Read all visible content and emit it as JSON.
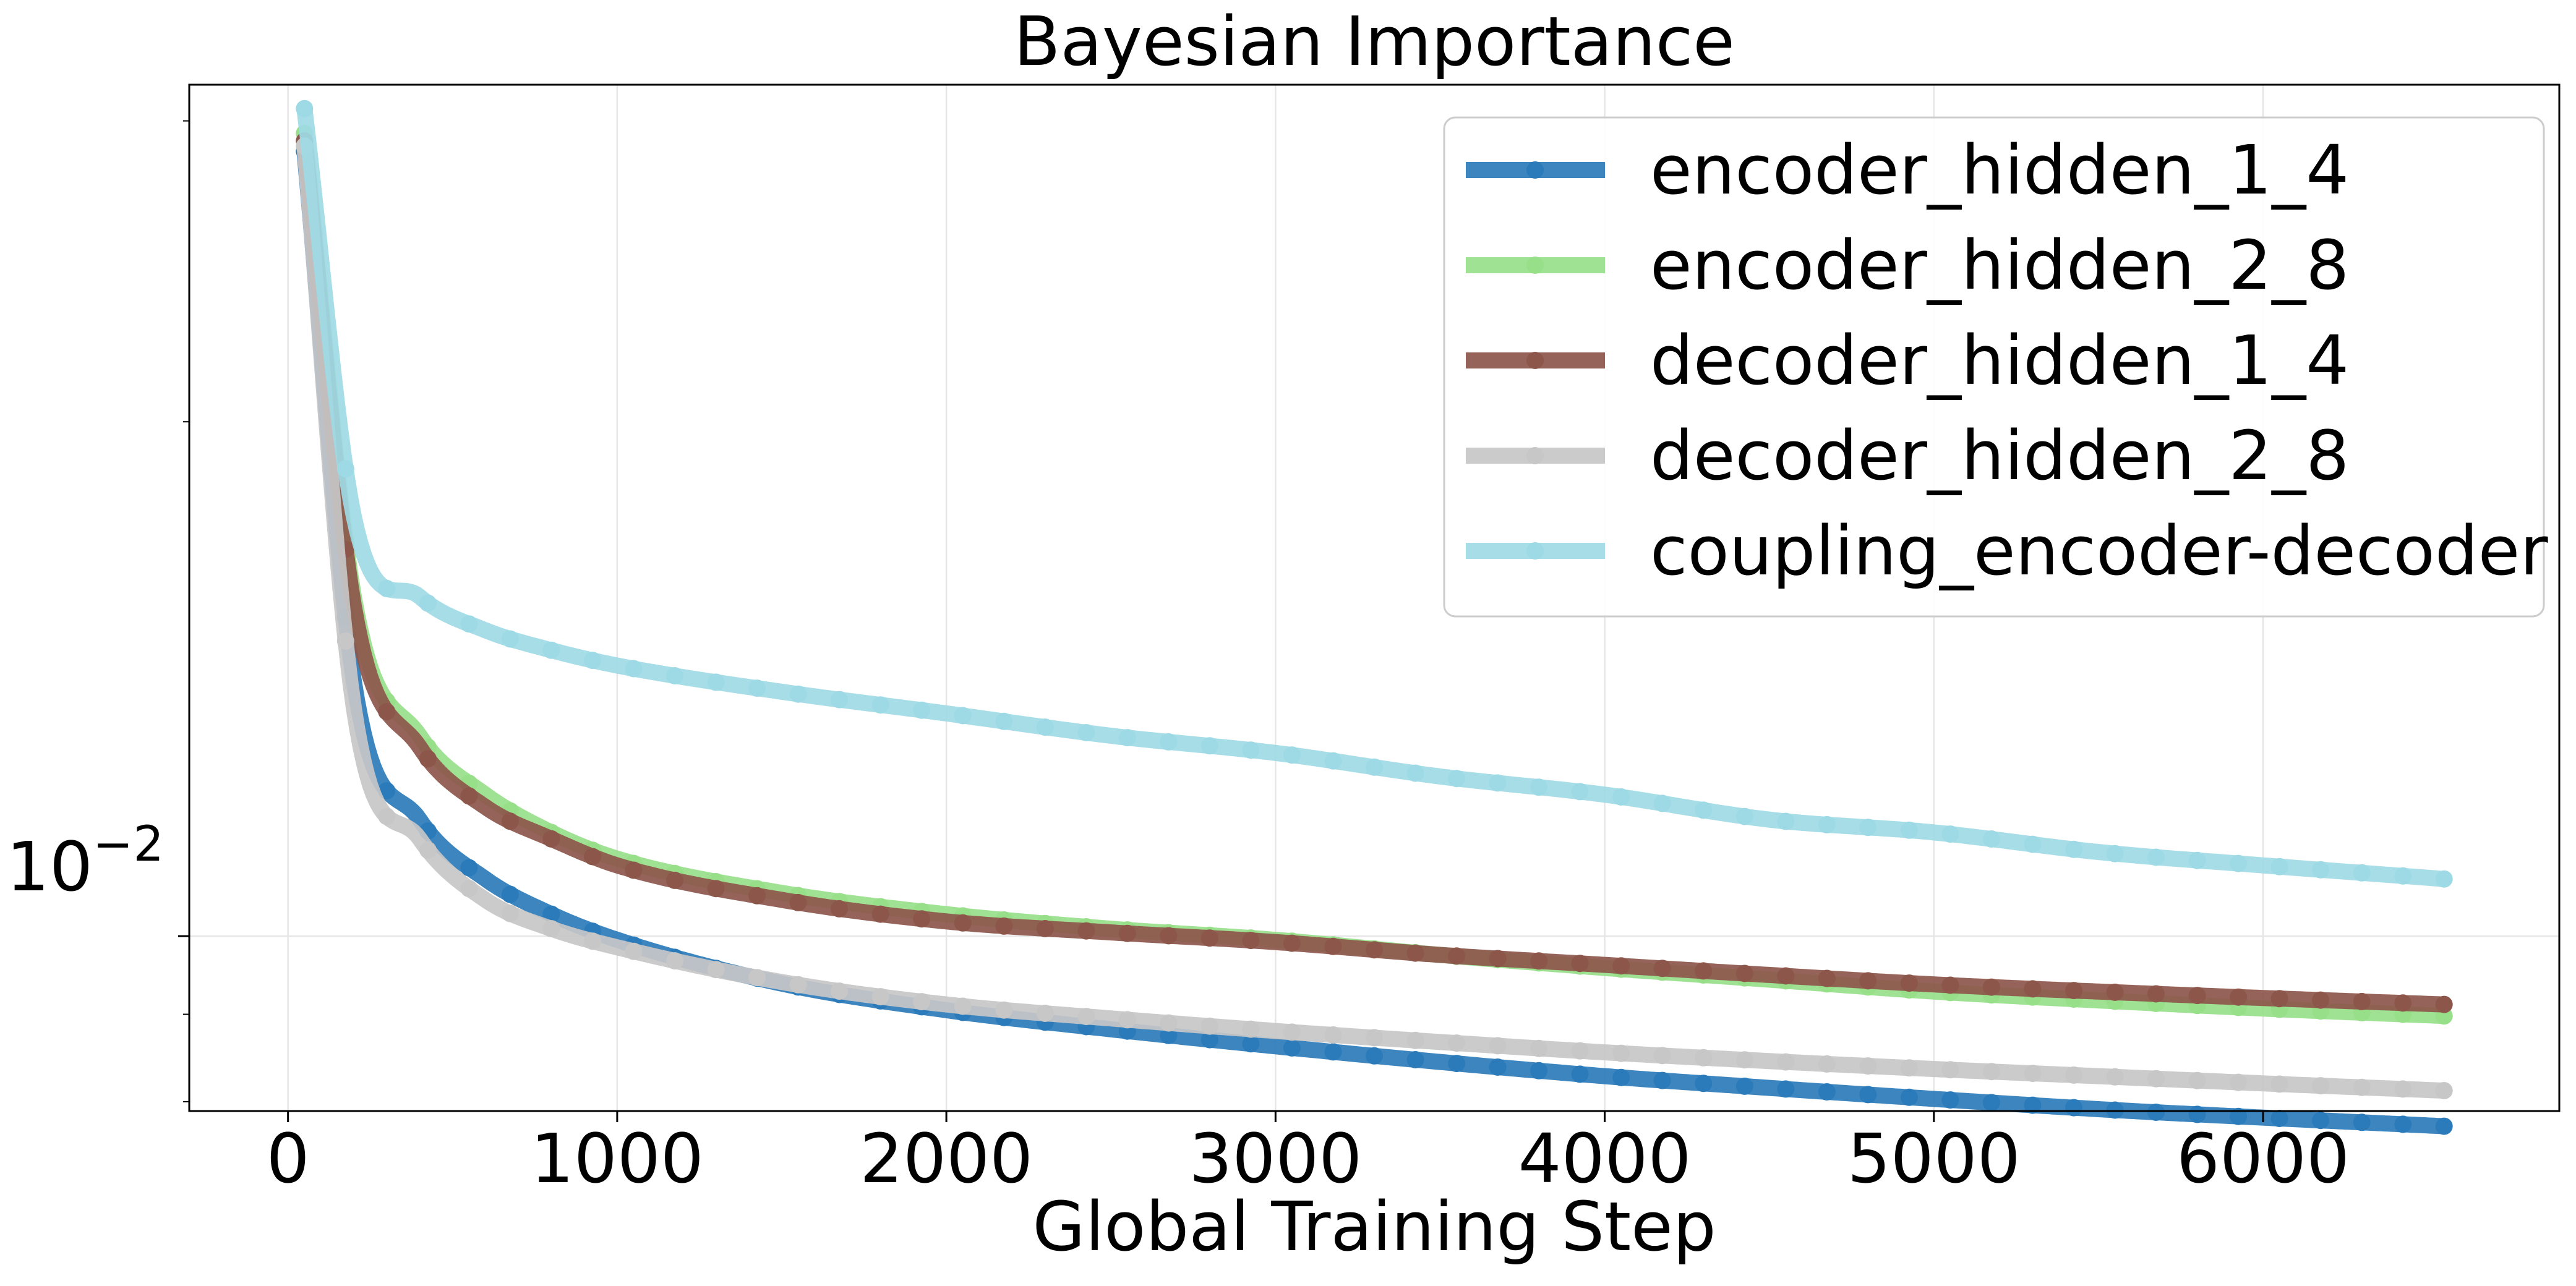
{
  "chart_data": {
    "type": "line",
    "title": "Bayesian Importance",
    "xlabel": "Global Training Step",
    "ylabel": "",
    "yscale": "log",
    "xlim": [
      -300,
      6900
    ],
    "ylim": [
      0.0079,
      0.0315
    ],
    "xticks": [
      0,
      1000,
      2000,
      3000,
      4000,
      5000,
      6000
    ],
    "xtick_labels": [
      "0",
      "1000",
      "2000",
      "3000",
      "4000",
      "5000",
      "6000"
    ],
    "yticks": [
      0.01
    ],
    "ytick_labels": [
      "10",
      "−2"
    ],
    "grid": true,
    "legend_position": "upper-right",
    "series": [
      {
        "name": "encoder_hidden_1_4",
        "color": "#2b7bba",
        "points": [
          [
            50,
            0.0288
          ],
          [
            200,
            0.0141
          ],
          [
            400,
            0.0117
          ],
          [
            600,
            0.0108
          ],
          [
            800,
            0.0103
          ],
          [
            1000,
            0.00995
          ],
          [
            1500,
            0.00938
          ],
          [
            2000,
            0.00905
          ],
          [
            2500,
            0.00882
          ],
          [
            3000,
            0.00862
          ],
          [
            3500,
            0.00844
          ],
          [
            4000,
            0.00828
          ],
          [
            4500,
            0.00815
          ],
          [
            5000,
            0.00803
          ],
          [
            5500,
            0.00792
          ],
          [
            6000,
            0.00783
          ],
          [
            6550,
            0.00774
          ]
        ]
      },
      {
        "name": "encoder_hidden_2_8",
        "color": "#98df8a",
        "points": [
          [
            50,
            0.0295
          ],
          [
            200,
            0.0158
          ],
          [
            400,
            0.0131
          ],
          [
            600,
            0.0121
          ],
          [
            800,
            0.0115
          ],
          [
            1000,
            0.0111
          ],
          [
            1500,
            0.0106
          ],
          [
            2000,
            0.0103
          ],
          [
            2500,
            0.0101
          ],
          [
            3000,
            0.00995
          ],
          [
            3500,
            0.00975
          ],
          [
            4000,
            0.00958
          ],
          [
            4500,
            0.00943
          ],
          [
            5000,
            0.00928
          ],
          [
            5500,
            0.00917
          ],
          [
            6000,
            0.00907
          ],
          [
            6550,
            0.00898
          ]
        ]
      },
      {
        "name": "decoder_hidden_1_4",
        "color": "#8c564b",
        "points": [
          [
            50,
            0.0292
          ],
          [
            200,
            0.0156
          ],
          [
            400,
            0.0129
          ],
          [
            600,
            0.0119
          ],
          [
            800,
            0.0114
          ],
          [
            1000,
            0.011
          ],
          [
            1500,
            0.0105
          ],
          [
            2000,
            0.0102
          ],
          [
            2500,
            0.01005
          ],
          [
            3000,
            0.00992
          ],
          [
            3500,
            0.00975
          ],
          [
            4000,
            0.00962
          ],
          [
            4500,
            0.00949
          ],
          [
            5000,
            0.00937
          ],
          [
            5500,
            0.00928
          ],
          [
            6000,
            0.0092
          ],
          [
            6550,
            0.00912
          ]
        ]
      },
      {
        "name": "decoder_hidden_2_8",
        "color": "#c7c7c7",
        "points": [
          [
            50,
            0.029
          ],
          [
            200,
            0.0136
          ],
          [
            400,
            0.0114
          ],
          [
            600,
            0.0105
          ],
          [
            800,
            0.0101
          ],
          [
            1000,
            0.00985
          ],
          [
            1500,
            0.0094
          ],
          [
            2000,
            0.00912
          ],
          [
            2500,
            0.00895
          ],
          [
            3000,
            0.0088
          ],
          [
            3500,
            0.00867
          ],
          [
            4000,
            0.00855
          ],
          [
            4500,
            0.00845
          ],
          [
            5000,
            0.00836
          ],
          [
            5500,
            0.00828
          ],
          [
            6000,
            0.0082
          ],
          [
            6550,
            0.00812
          ]
        ]
      },
      {
        "name": "coupling_encoder-decoder",
        "color": "#9edae5",
        "points": [
          [
            50,
            0.0305
          ],
          [
            200,
            0.0176
          ],
          [
            400,
            0.0158
          ],
          [
            600,
            0.0151
          ],
          [
            800,
            0.0147
          ],
          [
            1000,
            0.0144
          ],
          [
            1500,
            0.0139
          ],
          [
            2000,
            0.0135
          ],
          [
            2500,
            0.0131
          ],
          [
            3000,
            0.0128
          ],
          [
            3500,
            0.0124
          ],
          [
            4000,
            0.0121
          ],
          [
            4500,
            0.0117
          ],
          [
            5000,
            0.0115
          ],
          [
            5500,
            0.0112
          ],
          [
            6000,
            0.011
          ],
          [
            6550,
            0.0108
          ]
        ]
      }
    ]
  }
}
